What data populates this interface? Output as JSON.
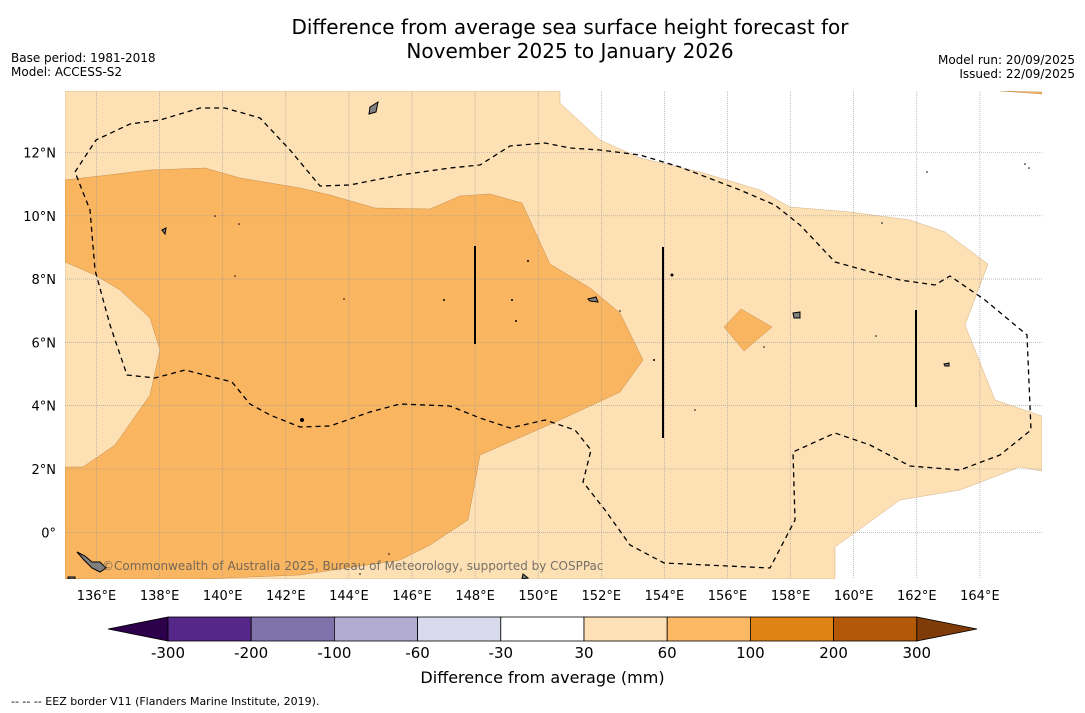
{
  "title": {
    "line1": "Difference from average sea surface height forecast for",
    "line2": "November 2025 to January 2026"
  },
  "meta_left": {
    "base_period": "Base period: 1981-2018",
    "model": "Model: ACCESS-S2"
  },
  "meta_right": {
    "model_run": "Model run: 20/09/2025",
    "issued": "Issued: 22/09/2025"
  },
  "map": {
    "x_ticks": [
      "136°E",
      "138°E",
      "140°E",
      "142°E",
      "144°E",
      "146°E",
      "148°E",
      "150°E",
      "152°E",
      "154°E",
      "156°E",
      "158°E",
      "160°E",
      "162°E",
      "164°E"
    ],
    "y_ticks": [
      "12°N",
      "10°N",
      "8°N",
      "6°N",
      "4°N",
      "2°N",
      "0°"
    ],
    "copyright": "©Commonwealth of Australia 2025, Bureau of Meteorology, supported by COSPPac",
    "colors": {
      "band_30_60": "#fde0b4",
      "band_60_100": "#f9b560",
      "land": "#808080",
      "ocean": "#ffffff"
    }
  },
  "colorbar": {
    "labels": [
      "-300",
      "-200",
      "-100",
      "-60",
      "-30",
      "30",
      "60",
      "100",
      "200",
      "300"
    ],
    "colors": [
      "#2d004b",
      "#542788",
      "#8073ac",
      "#b2abd2",
      "#d8daeb",
      "#ffffff",
      "#fee0b6",
      "#fdb863",
      "#e08214",
      "#b35806",
      "#7f3b08"
    ],
    "title": "Difference from average (mm)"
  },
  "footer": {
    "eez_note": "-- -- -- EEZ border V11 (Flanders Marine Institute, 2019)."
  }
}
